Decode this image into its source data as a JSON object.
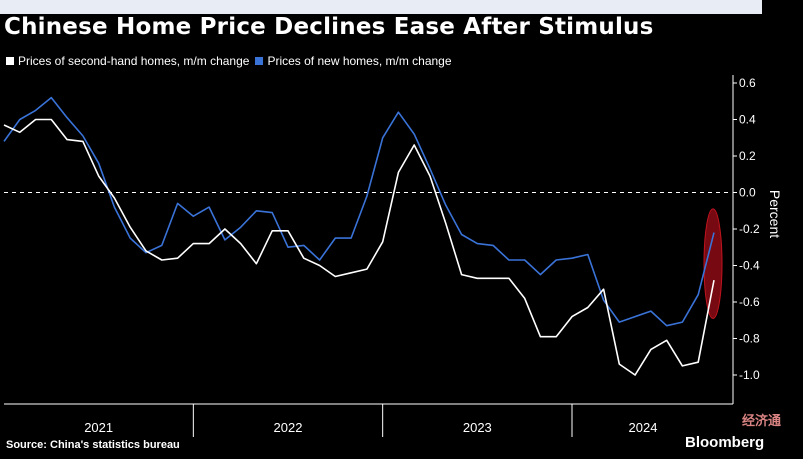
{
  "title": "Chinese Home Price Declines Ease After Stimulus",
  "source": "Source: China's statistics bureau",
  "brand": "Bloomberg",
  "watermark_text": "经济通",
  "colors": {
    "background": "#000000",
    "second_hand": "#ffffff",
    "new_homes": "#3a73d8",
    "highlight": "#8b0a14",
    "grid": "#ffffff"
  },
  "chart_data": {
    "type": "line",
    "title": "Chinese Home Price Declines Ease After Stimulus",
    "xlabel": "",
    "ylabel": "Percent",
    "ylim": [
      -1.1,
      0.65
    ],
    "yticks": [
      0.6,
      0.4,
      0.2,
      0.0,
      -0.2,
      -0.4,
      -0.6,
      -0.8,
      -1.0
    ],
    "ytick_labels": [
      "0.6",
      "0.4",
      "0.2",
      "0.0",
      "-0.2",
      "-0.4",
      "-0.6",
      "-0.8",
      "-1.0"
    ],
    "x_start": "2021-01",
    "x_end": "2024-10",
    "year_labels": [
      "2021",
      "2022",
      "2023",
      "2024"
    ],
    "dashed_zero_line": true,
    "legend_position": "top-left",
    "highlight_annotation": "red ellipse around latest data points",
    "series": [
      {
        "name": "Prices of second-hand homes, m/m change",
        "color": "#ffffff",
        "x": [
          "2021-01",
          "2021-02",
          "2021-03",
          "2021-04",
          "2021-05",
          "2021-06",
          "2021-07",
          "2021-08",
          "2021-09",
          "2021-10",
          "2021-11",
          "2021-12",
          "2022-01",
          "2022-02",
          "2022-03",
          "2022-04",
          "2022-05",
          "2022-06",
          "2022-07",
          "2022-08",
          "2022-09",
          "2022-10",
          "2022-11",
          "2022-12",
          "2023-01",
          "2023-02",
          "2023-03",
          "2023-04",
          "2023-05",
          "2023-06",
          "2023-07",
          "2023-08",
          "2023-09",
          "2023-10",
          "2023-11",
          "2023-12",
          "2024-01",
          "2024-02",
          "2024-03",
          "2024-04",
          "2024-05",
          "2024-06",
          "2024-07",
          "2024-08",
          "2024-09",
          "2024-10"
        ],
        "values": [
          0.37,
          0.33,
          0.4,
          0.4,
          0.29,
          0.28,
          0.09,
          -0.03,
          -0.19,
          -0.32,
          -0.37,
          -0.36,
          -0.28,
          -0.28,
          -0.2,
          -0.28,
          -0.39,
          -0.21,
          -0.21,
          -0.36,
          -0.4,
          -0.46,
          -0.44,
          -0.42,
          -0.27,
          0.11,
          0.26,
          0.09,
          -0.17,
          -0.45,
          -0.47,
          -0.47,
          -0.47,
          -0.58,
          -0.79,
          -0.79,
          -0.68,
          -0.63,
          -0.53,
          -0.94,
          -1.0,
          -0.86,
          -0.81,
          -0.95,
          -0.93,
          -0.48
        ]
      },
      {
        "name": "Prices of new homes, m/m change",
        "color": "#3a73d8",
        "x": [
          "2021-01",
          "2021-02",
          "2021-03",
          "2021-04",
          "2021-05",
          "2021-06",
          "2021-07",
          "2021-08",
          "2021-09",
          "2021-10",
          "2021-11",
          "2021-12",
          "2022-01",
          "2022-02",
          "2022-03",
          "2022-04",
          "2022-05",
          "2022-06",
          "2022-07",
          "2022-08",
          "2022-09",
          "2022-10",
          "2022-11",
          "2022-12",
          "2023-01",
          "2023-02",
          "2023-03",
          "2023-04",
          "2023-05",
          "2023-06",
          "2023-07",
          "2023-08",
          "2023-09",
          "2023-10",
          "2023-11",
          "2023-12",
          "2024-01",
          "2024-02",
          "2024-03",
          "2024-04",
          "2024-05",
          "2024-06",
          "2024-07",
          "2024-08",
          "2024-09",
          "2024-10"
        ],
        "values": [
          0.28,
          0.4,
          0.45,
          0.52,
          0.41,
          0.31,
          0.16,
          -0.08,
          -0.25,
          -0.33,
          -0.29,
          -0.06,
          -0.13,
          -0.08,
          -0.26,
          -0.19,
          -0.1,
          -0.11,
          -0.3,
          -0.29,
          -0.37,
          -0.25,
          -0.25,
          -0.02,
          0.3,
          0.44,
          0.32,
          0.13,
          -0.07,
          -0.23,
          -0.28,
          -0.29,
          -0.37,
          -0.37,
          -0.45,
          -0.37,
          -0.36,
          -0.34,
          -0.59,
          -0.71,
          -0.68,
          -0.65,
          -0.73,
          -0.71,
          -0.56,
          -0.22
        ]
      }
    ]
  },
  "highlight_window": {
    "x": "2024-10",
    "y_center": -0.39,
    "y_span": 0.6
  }
}
